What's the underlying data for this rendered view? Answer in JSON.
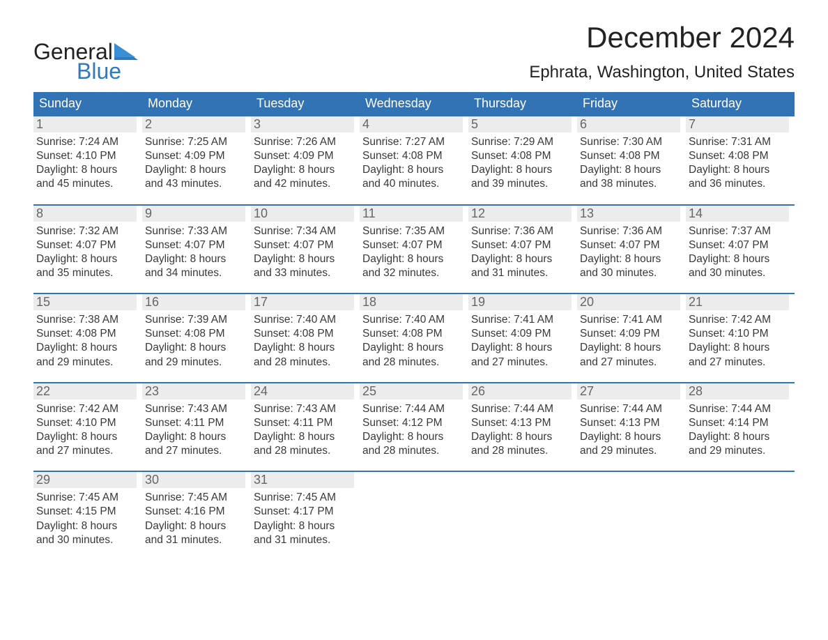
{
  "brand": {
    "general": "General",
    "blue": "Blue",
    "accent": "#2f7abf"
  },
  "title": "December 2024",
  "location": "Ephrata, Washington, United States",
  "colors": {
    "header_bg": "#3173b5",
    "header_text": "#ffffff",
    "daynum_bg": "#ececec",
    "daynum_text": "#666666",
    "body_text": "#383838",
    "rule": "#3173b5"
  },
  "dow": [
    "Sunday",
    "Monday",
    "Tuesday",
    "Wednesday",
    "Thursday",
    "Friday",
    "Saturday"
  ],
  "weeks": [
    [
      {
        "n": "1",
        "sr": "7:24 AM",
        "ss": "4:10 PM",
        "dl": "8 hours and 45 minutes."
      },
      {
        "n": "2",
        "sr": "7:25 AM",
        "ss": "4:09 PM",
        "dl": "8 hours and 43 minutes."
      },
      {
        "n": "3",
        "sr": "7:26 AM",
        "ss": "4:09 PM",
        "dl": "8 hours and 42 minutes."
      },
      {
        "n": "4",
        "sr": "7:27 AM",
        "ss": "4:08 PM",
        "dl": "8 hours and 40 minutes."
      },
      {
        "n": "5",
        "sr": "7:29 AM",
        "ss": "4:08 PM",
        "dl": "8 hours and 39 minutes."
      },
      {
        "n": "6",
        "sr": "7:30 AM",
        "ss": "4:08 PM",
        "dl": "8 hours and 38 minutes."
      },
      {
        "n": "7",
        "sr": "7:31 AM",
        "ss": "4:08 PM",
        "dl": "8 hours and 36 minutes."
      }
    ],
    [
      {
        "n": "8",
        "sr": "7:32 AM",
        "ss": "4:07 PM",
        "dl": "8 hours and 35 minutes."
      },
      {
        "n": "9",
        "sr": "7:33 AM",
        "ss": "4:07 PM",
        "dl": "8 hours and 34 minutes."
      },
      {
        "n": "10",
        "sr": "7:34 AM",
        "ss": "4:07 PM",
        "dl": "8 hours and 33 minutes."
      },
      {
        "n": "11",
        "sr": "7:35 AM",
        "ss": "4:07 PM",
        "dl": "8 hours and 32 minutes."
      },
      {
        "n": "12",
        "sr": "7:36 AM",
        "ss": "4:07 PM",
        "dl": "8 hours and 31 minutes."
      },
      {
        "n": "13",
        "sr": "7:36 AM",
        "ss": "4:07 PM",
        "dl": "8 hours and 30 minutes."
      },
      {
        "n": "14",
        "sr": "7:37 AM",
        "ss": "4:07 PM",
        "dl": "8 hours and 30 minutes."
      }
    ],
    [
      {
        "n": "15",
        "sr": "7:38 AM",
        "ss": "4:08 PM",
        "dl": "8 hours and 29 minutes."
      },
      {
        "n": "16",
        "sr": "7:39 AM",
        "ss": "4:08 PM",
        "dl": "8 hours and 29 minutes."
      },
      {
        "n": "17",
        "sr": "7:40 AM",
        "ss": "4:08 PM",
        "dl": "8 hours and 28 minutes."
      },
      {
        "n": "18",
        "sr": "7:40 AM",
        "ss": "4:08 PM",
        "dl": "8 hours and 28 minutes."
      },
      {
        "n": "19",
        "sr": "7:41 AM",
        "ss": "4:09 PM",
        "dl": "8 hours and 27 minutes."
      },
      {
        "n": "20",
        "sr": "7:41 AM",
        "ss": "4:09 PM",
        "dl": "8 hours and 27 minutes."
      },
      {
        "n": "21",
        "sr": "7:42 AM",
        "ss": "4:10 PM",
        "dl": "8 hours and 27 minutes."
      }
    ],
    [
      {
        "n": "22",
        "sr": "7:42 AM",
        "ss": "4:10 PM",
        "dl": "8 hours and 27 minutes."
      },
      {
        "n": "23",
        "sr": "7:43 AM",
        "ss": "4:11 PM",
        "dl": "8 hours and 27 minutes."
      },
      {
        "n": "24",
        "sr": "7:43 AM",
        "ss": "4:11 PM",
        "dl": "8 hours and 28 minutes."
      },
      {
        "n": "25",
        "sr": "7:44 AM",
        "ss": "4:12 PM",
        "dl": "8 hours and 28 minutes."
      },
      {
        "n": "26",
        "sr": "7:44 AM",
        "ss": "4:13 PM",
        "dl": "8 hours and 28 minutes."
      },
      {
        "n": "27",
        "sr": "7:44 AM",
        "ss": "4:13 PM",
        "dl": "8 hours and 29 minutes."
      },
      {
        "n": "28",
        "sr": "7:44 AM",
        "ss": "4:14 PM",
        "dl": "8 hours and 29 minutes."
      }
    ],
    [
      {
        "n": "29",
        "sr": "7:45 AM",
        "ss": "4:15 PM",
        "dl": "8 hours and 30 minutes."
      },
      {
        "n": "30",
        "sr": "7:45 AM",
        "ss": "4:16 PM",
        "dl": "8 hours and 31 minutes."
      },
      {
        "n": "31",
        "sr": "7:45 AM",
        "ss": "4:17 PM",
        "dl": "8 hours and 31 minutes."
      },
      null,
      null,
      null,
      null
    ]
  ],
  "labels": {
    "sunrise": "Sunrise:",
    "sunset": "Sunset:",
    "daylight": "Daylight:"
  }
}
